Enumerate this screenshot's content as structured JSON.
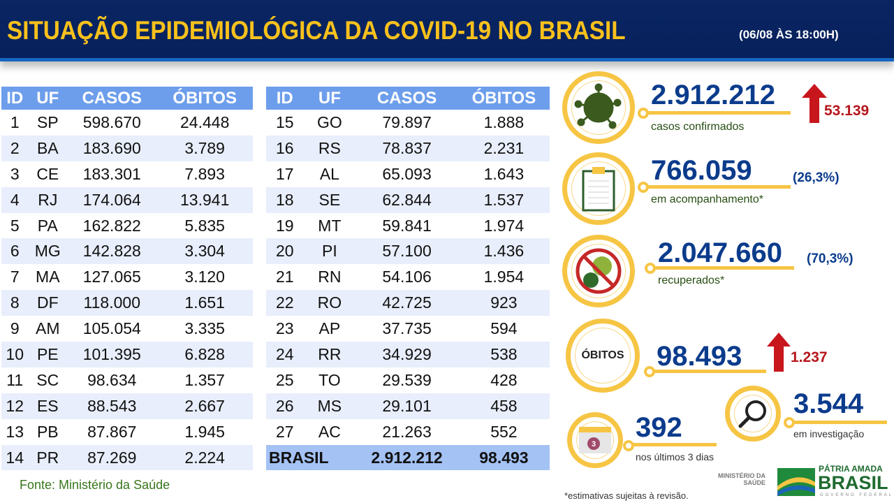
{
  "header": {
    "title": "SITUAÇÃO EPIDEMIOLÓGICA DA COVID-19 NO BRASIL",
    "date": "(06/08 ÀS 18:00H)"
  },
  "table": {
    "columns": [
      "ID",
      "UF",
      "CASOS",
      "ÓBITOS"
    ],
    "left": [
      [
        "1",
        "SP",
        "598.670",
        "24.448"
      ],
      [
        "2",
        "BA",
        "183.690",
        "3.789"
      ],
      [
        "3",
        "CE",
        "183.301",
        "7.893"
      ],
      [
        "4",
        "RJ",
        "174.064",
        "13.941"
      ],
      [
        "5",
        "PA",
        "162.822",
        "5.835"
      ],
      [
        "6",
        "MG",
        "142.828",
        "3.304"
      ],
      [
        "7",
        "MA",
        "127.065",
        "3.120"
      ],
      [
        "8",
        "DF",
        "118.000",
        "1.651"
      ],
      [
        "9",
        "AM",
        "105.054",
        "3.335"
      ],
      [
        "10",
        "PE",
        "101.395",
        "6.828"
      ],
      [
        "11",
        "SC",
        "98.634",
        "1.357"
      ],
      [
        "12",
        "ES",
        "88.543",
        "2.667"
      ],
      [
        "13",
        "PB",
        "87.867",
        "1.945"
      ],
      [
        "14",
        "PR",
        "87.269",
        "2.224"
      ]
    ],
    "right": [
      [
        "15",
        "GO",
        "79.897",
        "1.888"
      ],
      [
        "16",
        "RS",
        "78.837",
        "2.231"
      ],
      [
        "17",
        "AL",
        "65.093",
        "1.643"
      ],
      [
        "18",
        "SE",
        "62.844",
        "1.537"
      ],
      [
        "19",
        "MT",
        "59.841",
        "1.974"
      ],
      [
        "20",
        "PI",
        "57.100",
        "1.436"
      ],
      [
        "21",
        "RN",
        "54.106",
        "1.954"
      ],
      [
        "22",
        "RO",
        "42.725",
        "923"
      ],
      [
        "23",
        "AP",
        "37.735",
        "594"
      ],
      [
        "24",
        "RR",
        "34.929",
        "538"
      ],
      [
        "25",
        "TO",
        "29.539",
        "428"
      ],
      [
        "26",
        "MS",
        "29.101",
        "458"
      ],
      [
        "27",
        "AC",
        "21.263",
        "552"
      ]
    ],
    "total": {
      "label": "BRASIL",
      "casos": "2.912.212",
      "obitos": "98.493"
    }
  },
  "source": "Fonte: Ministério da Saúde",
  "stats": {
    "confirmed": {
      "value": "2.912.212",
      "label": "casos confirmados",
      "increase": "53.139"
    },
    "monitoring": {
      "value": "766.059",
      "pct": "(26,3%)",
      "label": "em acompanhamento*"
    },
    "recovered": {
      "value": "2.047.660",
      "pct": "(70,3%)",
      "label": "recuperados*"
    },
    "deaths": {
      "circle_label": "ÓBITOS",
      "value": "98.493",
      "increase": "1.237"
    },
    "last3": {
      "value": "392",
      "label": "nos últimos 3 dias",
      "calendar": "3"
    },
    "investigation": {
      "value": "3.544",
      "label": "em investigação"
    }
  },
  "footnote": "*estimativas sujeitas à revisão.",
  "logos": {
    "ministry": "MINISTÉRIO DA SAÚDE",
    "brand_top": "PÁTRIA AMADA",
    "brand_main": "BRASIL",
    "brand_sub": "GOVERNO FEDERAL"
  },
  "colors": {
    "navy": "#0a2563",
    "yellow": "#f9c11c",
    "blue": "#0b3b8c",
    "red": "#b7161d"
  }
}
